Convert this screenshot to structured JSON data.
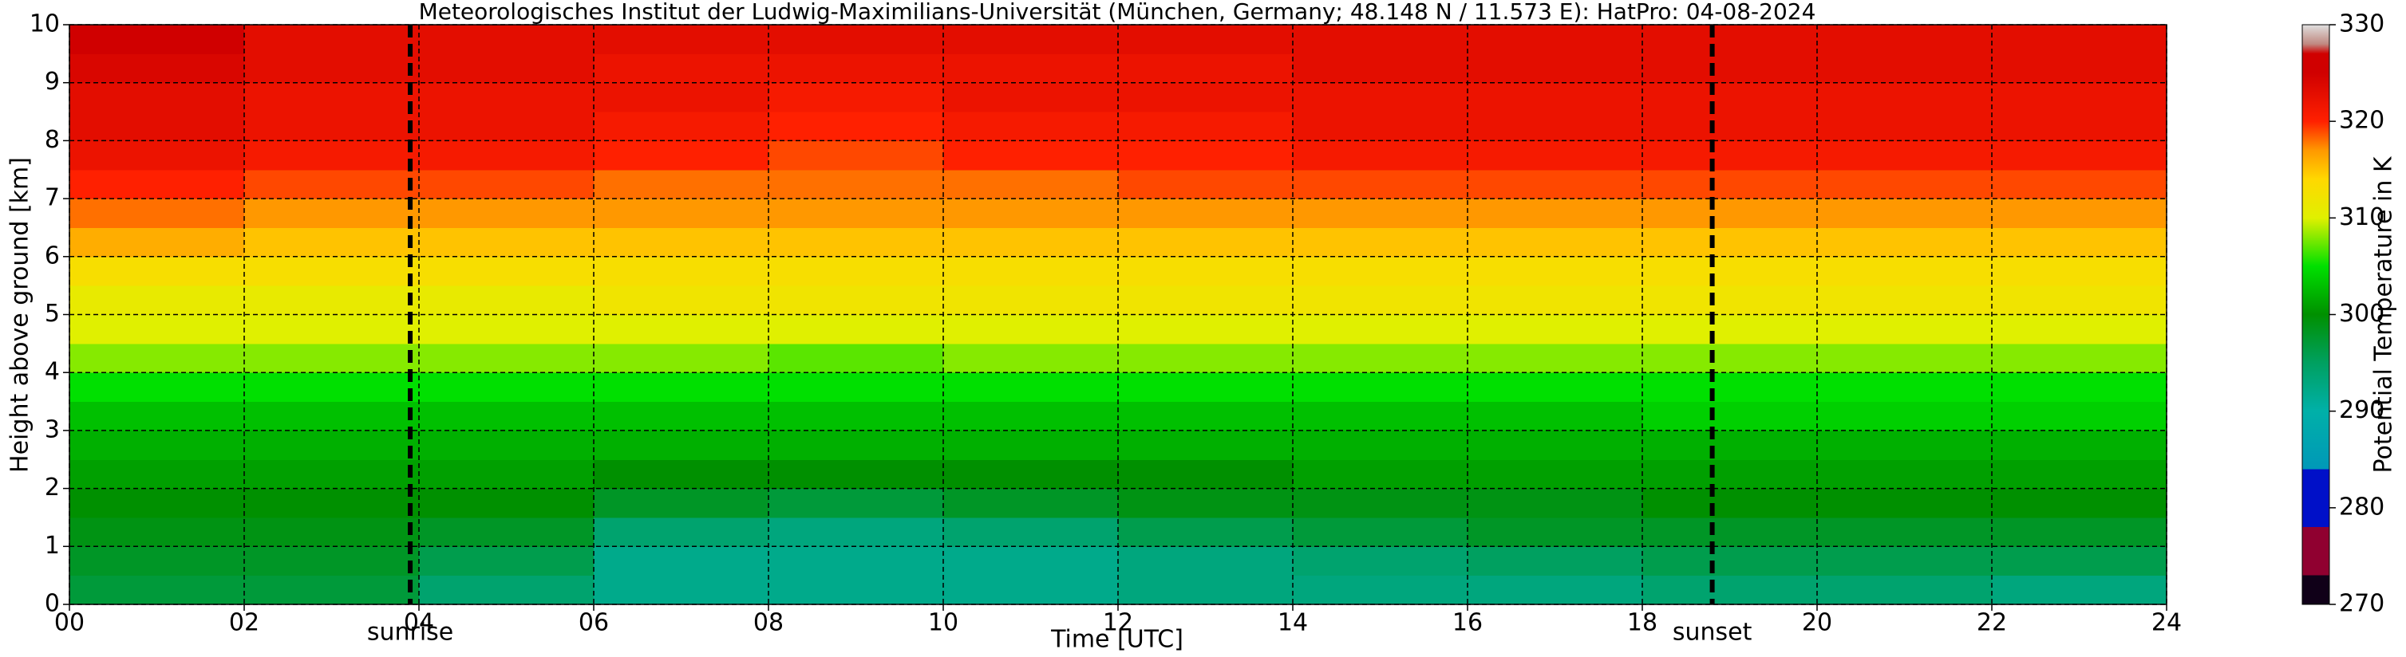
{
  "chart_data": {
    "type": "heatmap",
    "title": "Meteorologisches Institut der Ludwig-Maximilians-Universität (München, Germany; 48.148 N / 11.573 E):    HatPro: 04-08-2024",
    "xlabel": "Time [UTC]",
    "ylabel": "Height above ground [km]",
    "xlim": [
      0,
      24
    ],
    "ylim": [
      0,
      10
    ],
    "xticks": [
      {
        "value": 0,
        "label": "00"
      },
      {
        "value": 2,
        "label": "02"
      },
      {
        "value": 4,
        "label": "04"
      },
      {
        "value": 6,
        "label": "06"
      },
      {
        "value": 8,
        "label": "08"
      },
      {
        "value": 10,
        "label": "10"
      },
      {
        "value": 12,
        "label": "12"
      },
      {
        "value": 14,
        "label": "14"
      },
      {
        "value": 16,
        "label": "16"
      },
      {
        "value": 18,
        "label": "18"
      },
      {
        "value": 20,
        "label": "20"
      },
      {
        "value": 22,
        "label": "22"
      },
      {
        "value": 24,
        "label": "24"
      }
    ],
    "yticks": [
      0,
      1,
      2,
      3,
      4,
      5,
      6,
      7,
      8,
      9,
      10
    ],
    "grid": true,
    "x": [
      1,
      3,
      5,
      7,
      9,
      11,
      13,
      15,
      17,
      19,
      21,
      23
    ],
    "y": [
      0.25,
      0.75,
      1.25,
      1.75,
      2.25,
      2.75,
      3.25,
      3.75,
      4.25,
      4.75,
      5.25,
      5.75,
      6.25,
      6.75,
      7.25,
      7.75,
      8.25,
      8.75,
      9.25,
      9.75
    ],
    "z": [
      [
        297,
        298,
        299,
        300,
        301,
        302,
        303,
        305,
        308,
        310,
        311,
        313,
        316,
        318,
        320,
        322,
        323,
        323,
        324,
        326
      ],
      [
        297,
        298,
        299,
        300,
        301,
        302,
        303,
        305,
        308,
        310,
        311,
        313,
        315,
        317,
        319,
        321,
        322,
        322,
        323,
        323
      ],
      [
        294,
        296,
        298,
        300,
        301,
        302,
        303,
        305,
        308,
        310,
        311,
        313,
        315,
        317,
        319,
        321,
        322,
        322,
        323,
        323
      ],
      [
        292,
        292,
        294,
        298,
        300,
        302,
        303,
        305,
        308,
        310,
        312,
        313,
        315,
        317,
        318,
        320,
        321,
        322,
        322,
        323
      ],
      [
        292,
        292,
        293,
        297,
        300,
        302,
        303,
        305,
        307,
        310,
        312,
        313,
        315,
        317,
        318,
        319,
        320,
        321,
        322,
        323
      ],
      [
        292,
        292,
        294,
        298,
        300,
        302,
        303,
        305,
        308,
        310,
        312,
        313,
        315,
        317,
        318,
        320,
        321,
        322,
        322,
        323
      ],
      [
        293,
        293,
        296,
        299,
        300,
        302,
        303,
        305,
        308,
        310,
        312,
        313,
        315,
        317,
        319,
        320,
        321,
        322,
        322,
        323
      ],
      [
        293,
        294,
        297,
        299,
        301,
        302,
        303,
        305,
        308,
        310,
        312,
        313,
        315,
        317,
        319,
        321,
        322,
        322,
        323,
        323
      ],
      [
        293,
        295,
        298,
        299,
        301,
        302,
        303,
        305,
        308,
        310,
        312,
        313,
        315,
        317,
        319,
        321,
        322,
        322,
        323,
        323
      ],
      [
        294,
        296,
        298,
        300,
        301,
        302,
        304,
        305,
        308,
        310,
        312,
        313,
        315,
        317,
        319,
        321,
        322,
        322,
        323,
        323
      ],
      [
        294,
        296,
        298,
        300,
        301,
        302,
        304,
        305,
        308,
        310,
        312,
        313,
        315,
        317,
        319,
        321,
        322,
        322,
        323,
        323
      ],
      [
        293,
        296,
        298,
        300,
        301,
        302,
        304,
        305,
        308,
        310,
        312,
        313,
        315,
        317,
        319,
        321,
        322,
        322,
        323,
        323
      ]
    ],
    "annotations": [
      {
        "x": 3.9,
        "label": "sunrise"
      },
      {
        "x": 18.8,
        "label": "sunset"
      }
    ],
    "colorbar": {
      "label": "Potential Temperature in K",
      "lim": [
        270,
        330
      ],
      "ticks": [
        270,
        280,
        290,
        300,
        310,
        320,
        330
      ],
      "colormap": [
        [
          270,
          "#100018"
        ],
        [
          273,
          "#100018"
        ],
        [
          273,
          "#900030"
        ],
        [
          278,
          "#900030"
        ],
        [
          278,
          "#0010c8"
        ],
        [
          284,
          "#0010c8"
        ],
        [
          284,
          "#0098b8"
        ],
        [
          290,
          "#00b0a8"
        ],
        [
          295,
          "#00a060"
        ],
        [
          300,
          "#009000"
        ],
        [
          305,
          "#00e000"
        ],
        [
          310,
          "#e0f000"
        ],
        [
          314,
          "#ffd800"
        ],
        [
          317,
          "#ff9800"
        ],
        [
          320,
          "#ff2000"
        ],
        [
          325,
          "#d00000"
        ],
        [
          327,
          "#d00000"
        ],
        [
          328,
          "#c08880"
        ],
        [
          330,
          "#e0e0e0"
        ]
      ]
    }
  }
}
